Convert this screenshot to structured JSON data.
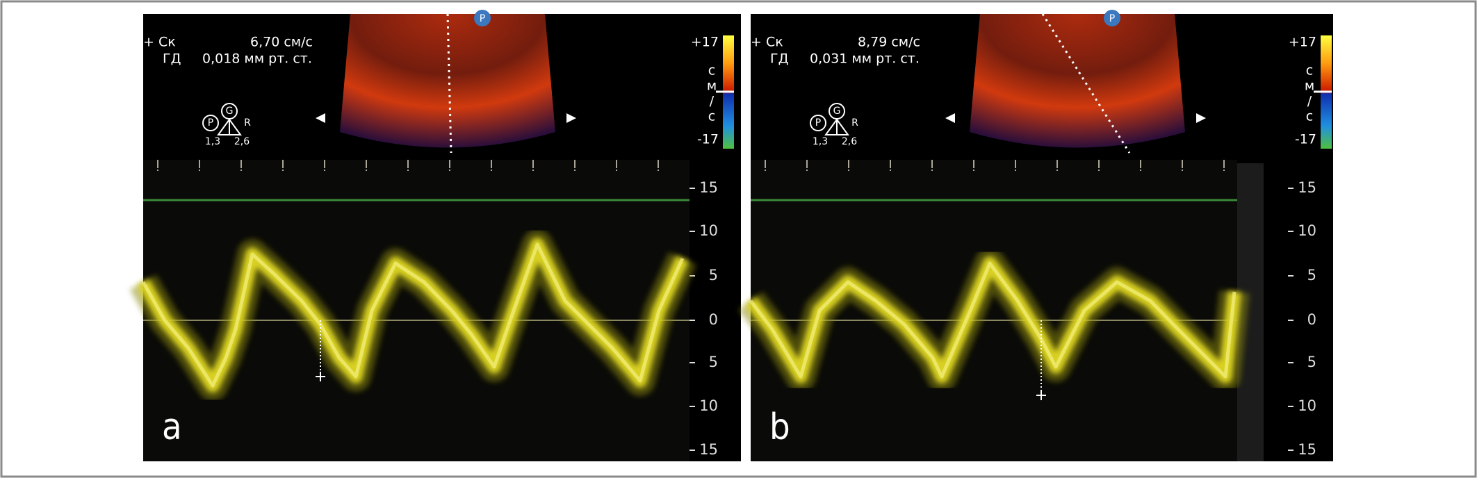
{
  "panels": [
    {
      "label": "a",
      "sample_volume": "+ Ск",
      "velocity": "6,70 см/с",
      "pressure_label": "ГД",
      "pressure": "0,018 мм рт. ст.",
      "sector_marker": "P",
      "probe_icon": {
        "p": "P",
        "g": "G",
        "r": "R",
        "left": "1,3",
        "right": "2,6"
      },
      "color_scale": {
        "max": "+17",
        "unit": [
          "с",
          "м",
          "/",
          "с"
        ],
        "min": "-17"
      },
      "velocity_scale": [
        15,
        10,
        5,
        0,
        5,
        10,
        15
      ]
    },
    {
      "label": "b",
      "sample_volume": "+ Ск",
      "velocity": "8,79 см/с",
      "pressure_label": "ГД",
      "pressure": "0,031 мм рт. ст.",
      "sector_marker": "P",
      "probe_icon": {
        "p": "P",
        "g": "G",
        "r": "R",
        "left": "1,3",
        "right": "2,6"
      },
      "color_scale": {
        "max": "+17",
        "unit": [
          "с",
          "м",
          "/",
          "с"
        ],
        "min": "-17"
      },
      "velocity_scale": [
        15,
        10,
        5,
        0,
        5,
        10,
        15
      ]
    }
  ]
}
